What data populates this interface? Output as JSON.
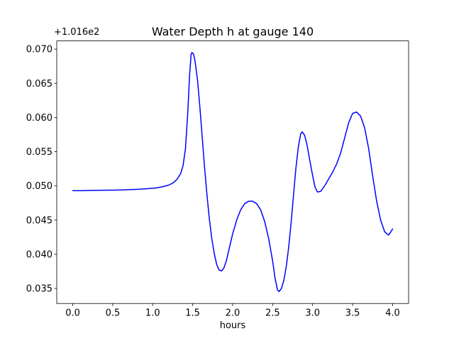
{
  "figure": {
    "title": "Water Depth h at gauge 140",
    "xlabel": "hours",
    "offset_text": "+1.016e2"
  },
  "chart_data": {
    "type": "line",
    "title": "Water Depth h at gauge 140",
    "xlabel": "hours",
    "ylabel": "",
    "y_axis_offset_text": "+1.016e2",
    "y_offset_value": 101.6,
    "line_color": "#0000ff",
    "grid": false,
    "legend_position": "none",
    "xlim": [
      -0.2,
      4.2
    ],
    "ylim": [
      0.0328,
      0.0712
    ],
    "xticks": [
      0.0,
      0.5,
      1.0,
      1.5,
      2.0,
      2.5,
      3.0,
      3.5,
      4.0
    ],
    "xtick_labels": [
      "0.0",
      "0.5",
      "1.0",
      "1.5",
      "2.0",
      "2.5",
      "3.0",
      "3.5",
      "4.0"
    ],
    "yticks": [
      0.035,
      0.04,
      0.045,
      0.05,
      0.055,
      0.06,
      0.065,
      0.07
    ],
    "ytick_labels": [
      "0.035",
      "0.040",
      "0.045",
      "0.050",
      "0.055",
      "0.060",
      "0.065",
      "0.070"
    ],
    "x": [
      0.0,
      0.1,
      0.2,
      0.3,
      0.4,
      0.5,
      0.6,
      0.7,
      0.8,
      0.9,
      1.0,
      1.05,
      1.1,
      1.15,
      1.2,
      1.25,
      1.3,
      1.35,
      1.38,
      1.41,
      1.44,
      1.46,
      1.48,
      1.49,
      1.51,
      1.53,
      1.56,
      1.59,
      1.62,
      1.65,
      1.68,
      1.71,
      1.74,
      1.77,
      1.8,
      1.83,
      1.86,
      1.89,
      1.92,
      1.95,
      2.0,
      2.05,
      2.1,
      2.15,
      2.2,
      2.25,
      2.3,
      2.35,
      2.4,
      2.45,
      2.5,
      2.53,
      2.56,
      2.58,
      2.61,
      2.64,
      2.67,
      2.7,
      2.73,
      2.76,
      2.79,
      2.82,
      2.85,
      2.87,
      2.9,
      2.93,
      2.96,
      3.0,
      3.03,
      3.06,
      3.1,
      3.15,
      3.2,
      3.25,
      3.3,
      3.35,
      3.4,
      3.45,
      3.5,
      3.55,
      3.6,
      3.65,
      3.7,
      3.75,
      3.8,
      3.85,
      3.9,
      3.95,
      4.0
    ],
    "y": [
      0.0493,
      0.0493,
      0.04932,
      0.04934,
      0.04936,
      0.04938,
      0.04941,
      0.04945,
      0.0495,
      0.04956,
      0.04965,
      0.04972,
      0.04982,
      0.04995,
      0.05012,
      0.0504,
      0.0509,
      0.0518,
      0.053,
      0.0555,
      0.061,
      0.066,
      0.0692,
      0.0695,
      0.0693,
      0.0682,
      0.0655,
      0.0615,
      0.057,
      0.0525,
      0.0485,
      0.045,
      0.0422,
      0.0401,
      0.0385,
      0.0377,
      0.03755,
      0.038,
      0.039,
      0.0405,
      0.043,
      0.045,
      0.0465,
      0.0474,
      0.04775,
      0.04775,
      0.0474,
      0.0465,
      0.0448,
      0.0423,
      0.039,
      0.0365,
      0.0348,
      0.03455,
      0.035,
      0.0362,
      0.0382,
      0.041,
      0.0445,
      0.0485,
      0.0525,
      0.0556,
      0.0576,
      0.0579,
      0.0574,
      0.056,
      0.054,
      0.0515,
      0.0498,
      0.0491,
      0.0492,
      0.05,
      0.051,
      0.052,
      0.0532,
      0.0548,
      0.057,
      0.0592,
      0.0606,
      0.0608,
      0.0602,
      0.0585,
      0.0555,
      0.0515,
      0.0478,
      0.045,
      0.0433,
      0.0428,
      0.0437
    ]
  }
}
